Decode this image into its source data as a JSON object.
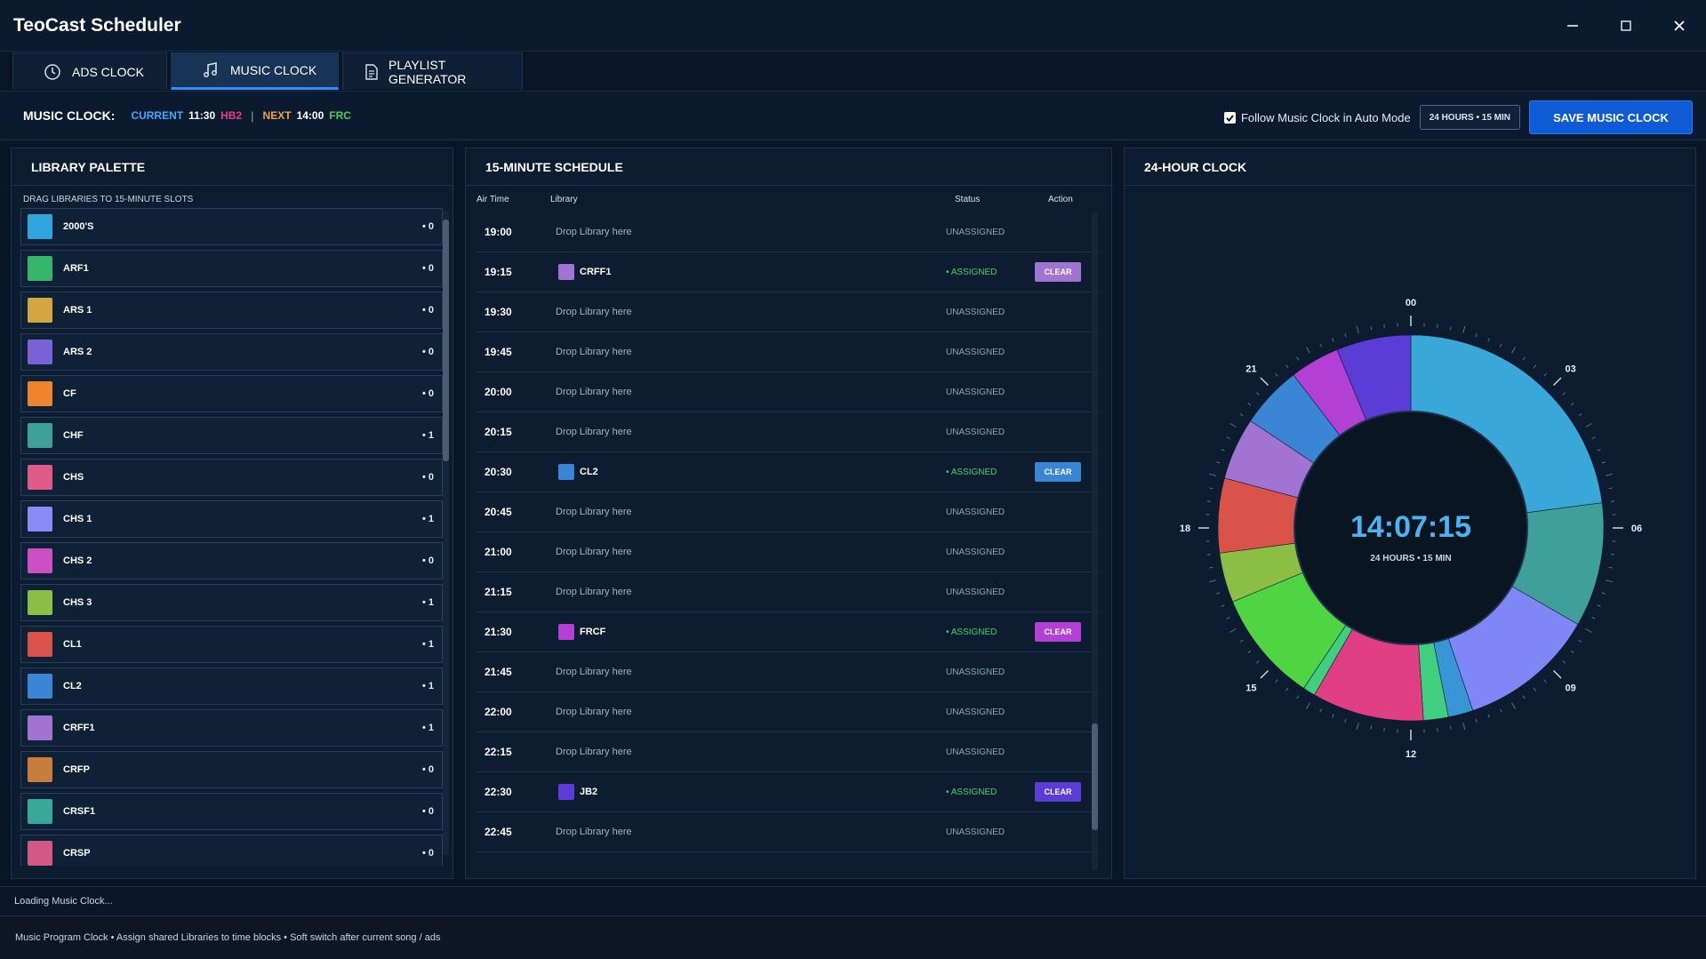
{
  "app": {
    "title": "TeoCast Scheduler"
  },
  "window_controls": {
    "minimize": "─",
    "maximize": "☐",
    "close": "✕"
  },
  "tabs": [
    {
      "label": "ADS CLOCK",
      "icon": "clock-icon",
      "active": false
    },
    {
      "label": "MUSIC CLOCK",
      "icon": "music-note-icon",
      "active": true
    },
    {
      "label": "PLAYLIST GENERATOR",
      "icon": "document-icon",
      "active": false
    }
  ],
  "clockbar": {
    "label": "MUSIC CLOCK:",
    "current_label": "CURRENT",
    "current_time": "11:30",
    "current_lib": "HB2",
    "separator": "|",
    "next_label": "NEXT",
    "next_time": "14:00",
    "next_lib": "FRC",
    "follow_label": "Follow Music Clock in Auto Mode",
    "follow_checked": true,
    "mode_badge": "24 HOURS • 15 MIN",
    "save_label": "SAVE MUSIC CLOCK"
  },
  "library": {
    "title": "LIBRARY PALETTE",
    "hint": "DRAG LIBRARIES TO 15-MINUTE SLOTS",
    "items": [
      {
        "name": "2000'S",
        "count": "• 0",
        "color": "#2ea6dd"
      },
      {
        "name": "ARF1",
        "count": "• 0",
        "color": "#37b56a"
      },
      {
        "name": "ARS 1",
        "count": "• 0",
        "color": "#d4a640"
      },
      {
        "name": "ARS 2",
        "count": "• 0",
        "color": "#7a62d8"
      },
      {
        "name": "CF",
        "count": "• 0",
        "color": "#f0842c"
      },
      {
        "name": "CHF",
        "count": "• 1",
        "color": "#3f9f9a"
      },
      {
        "name": "CHS",
        "count": "• 0",
        "color": "#e05a88"
      },
      {
        "name": "CHS 1",
        "count": "• 1",
        "color": "#8a8cf6"
      },
      {
        "name": "CHS 2",
        "count": "• 0",
        "color": "#cc4fc3"
      },
      {
        "name": "CHS 3",
        "count": "• 1",
        "color": "#8cbd45"
      },
      {
        "name": "CL1",
        "count": "• 1",
        "color": "#d9534a"
      },
      {
        "name": "CL2",
        "count": "• 1",
        "color": "#3a86d4"
      },
      {
        "name": "CRFF1",
        "count": "• 1",
        "color": "#a174d4"
      },
      {
        "name": "CRFP",
        "count": "• 0",
        "color": "#c77d3c"
      },
      {
        "name": "CRSF1",
        "count": "• 0",
        "color": "#38a89c"
      },
      {
        "name": "CRSP",
        "count": "• 0",
        "color": "#d25a82"
      },
      {
        "name": "",
        "count": "",
        "color": "#0f2136"
      }
    ]
  },
  "schedule": {
    "title": "15-MINUTE SCHEDULE",
    "col_air": "Air Time",
    "col_lib": "Library",
    "col_status": "Status",
    "col_action": "Action",
    "drop_text": "Drop Library here",
    "status_unassigned": "UNASSIGNED",
    "status_assigned": "• ASSIGNED",
    "clear_label": "CLEAR",
    "rows": [
      {
        "time": "19:00",
        "lib": null
      },
      {
        "time": "19:15",
        "lib": "CRFF1",
        "color": "#a174d4"
      },
      {
        "time": "19:30",
        "lib": null
      },
      {
        "time": "19:45",
        "lib": null
      },
      {
        "time": "20:00",
        "lib": null
      },
      {
        "time": "20:15",
        "lib": null
      },
      {
        "time": "20:30",
        "lib": "CL2",
        "color": "#3a86d4"
      },
      {
        "time": "20:45",
        "lib": null
      },
      {
        "time": "21:00",
        "lib": null
      },
      {
        "time": "21:15",
        "lib": null
      },
      {
        "time": "21:30",
        "lib": "FRCF",
        "color": "#b340d4"
      },
      {
        "time": "21:45",
        "lib": null
      },
      {
        "time": "22:00",
        "lib": null
      },
      {
        "time": "22:15",
        "lib": null
      },
      {
        "time": "22:30",
        "lib": "JB2",
        "color": "#5a3cd6"
      },
      {
        "time": "22:45",
        "lib": null
      }
    ]
  },
  "clock": {
    "title": "24-HOUR CLOCK",
    "time": "14:07:15",
    "subtitle": "24 HOURS • 15 MIN",
    "hour_labels": [
      "00",
      "03",
      "06",
      "09",
      "12",
      "15",
      "18",
      "21"
    ],
    "segments": [
      {
        "start": 0,
        "end": 5.5,
        "color": "#3aa7d9"
      },
      {
        "start": 5.5,
        "end": 8,
        "color": "#3f9f9a"
      },
      {
        "start": 8,
        "end": 10.75,
        "color": "#7f86f5"
      },
      {
        "start": 10.75,
        "end": 11.25,
        "color": "#3a95d6"
      },
      {
        "start": 11.25,
        "end": 11.75,
        "color": "#3fcf7e"
      },
      {
        "start": 11.75,
        "end": 14,
        "color": "#e03f84"
      },
      {
        "start": 14,
        "end": 14.25,
        "color": "#3fcf7e"
      },
      {
        "start": 14.25,
        "end": 16.5,
        "color": "#4fd444"
      },
      {
        "start": 16.5,
        "end": 17.5,
        "color": "#8cbd45"
      },
      {
        "start": 17.5,
        "end": 19,
        "color": "#d9534a"
      },
      {
        "start": 19,
        "end": 20.25,
        "color": "#a174d4"
      },
      {
        "start": 20.25,
        "end": 21.5,
        "color": "#3a86d4"
      },
      {
        "start": 21.5,
        "end": 22.5,
        "color": "#b340d4"
      },
      {
        "start": 22.5,
        "end": 24,
        "color": "#5a3cd6"
      }
    ]
  },
  "status_line": "Loading Music Clock...",
  "footer": "Music Program Clock  •  Assign shared Libraries to time blocks  •  Soft switch after current song / ads"
}
